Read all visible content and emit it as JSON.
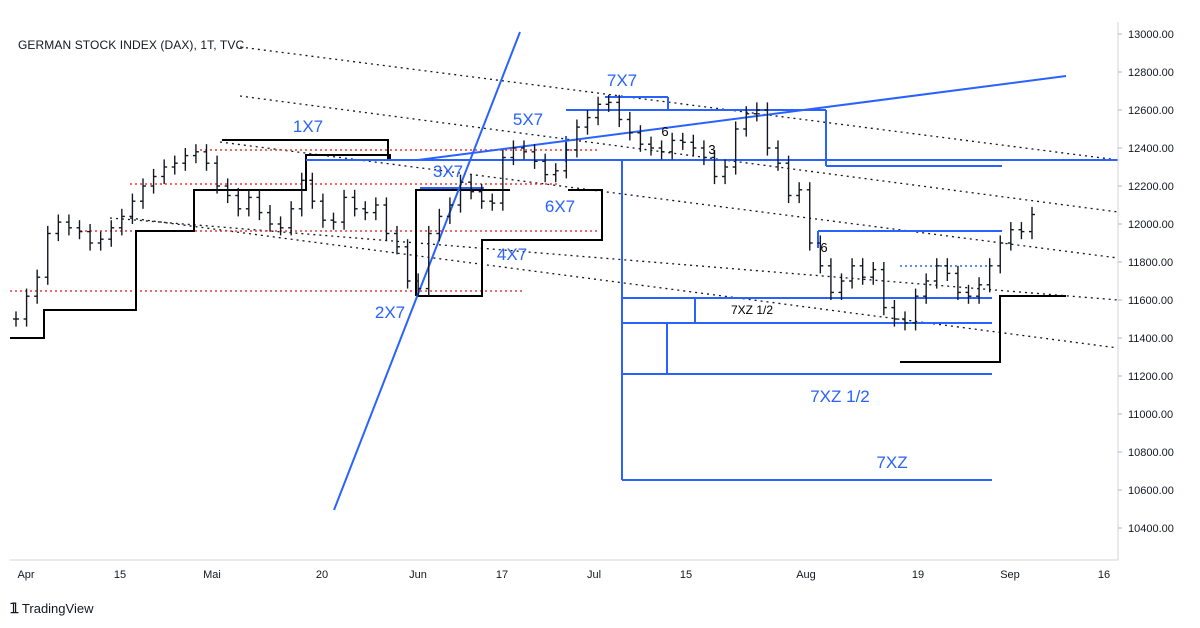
{
  "header": {
    "title": "GERMAN STOCK INDEX (DAX), 1T, TVC"
  },
  "footer": {
    "brand": "TradingView",
    "logo_icon": "tradingview-logo-icon"
  },
  "colors": {
    "bars": "#131722",
    "blue": "#2962ff",
    "red": "#e53935",
    "black": "#000000",
    "dotted": "#131722"
  },
  "chart_data": {
    "type": "ohlc",
    "title": "GERMAN STOCK INDEX (DAX), 1T, TVC",
    "y_axis": {
      "ticks": [
        10400,
        10600,
        10800,
        11000,
        11200,
        11400,
        11600,
        11800,
        12000,
        12200,
        12400,
        12600,
        12800,
        13000
      ],
      "tick_labels": [
        "10400.00",
        "10600.00",
        "10800.00",
        "11000.00",
        "11200.00",
        "11400.00",
        "11600.00",
        "11800.00",
        "12000.00",
        "12200.00",
        "12400.00",
        "12600.00",
        "12800.00",
        "13000.00"
      ],
      "ylim": [
        10250,
        13050
      ]
    },
    "x_axis": {
      "labels": [
        "Apr",
        "15",
        "Mai",
        "20",
        "Jun",
        "17",
        "Jul",
        "15",
        "Aug",
        "19",
        "Sep",
        "16"
      ]
    },
    "grid": false,
    "annotations_blue": [
      "1X7",
      "2X7",
      "3X7",
      "4X7",
      "5X7",
      "6X7",
      "7X7",
      "7XZ 1/2",
      "7XZ"
    ],
    "annotations_black": [
      "7XZ 1/2",
      "6",
      "3",
      "6"
    ],
    "closes": [
      11500,
      11620,
      11720,
      11950,
      12010,
      11980,
      11960,
      11900,
      11920,
      11980,
      12040,
      12120,
      12200,
      12250,
      12300,
      12320,
      12360,
      12380,
      12320,
      12200,
      12150,
      12080,
      12140,
      12060,
      12000,
      11980,
      12080,
      12230,
      12120,
      12020,
      12010,
      12140,
      12080,
      12060,
      12100,
      11950,
      11880,
      11700,
      11660,
      11950,
      12040,
      12100,
      12220,
      12170,
      12120,
      12110,
      12350,
      12400,
      12380,
      12330,
      12260,
      12280,
      12390,
      12510,
      12560,
      12630,
      12640,
      12550,
      12480,
      12420,
      12400,
      12380,
      12440,
      12430,
      12400,
      12350,
      12250,
      12300,
      12500,
      12580,
      12600,
      12400,
      12320,
      12150,
      12180,
      11900,
      11780,
      11640,
      11700,
      11780,
      11720,
      11760,
      11560,
      11500,
      11480,
      11620,
      11700,
      11780,
      11740,
      11640,
      11620,
      11680,
      11780,
      11900,
      11970,
      11960,
      12050
    ]
  }
}
